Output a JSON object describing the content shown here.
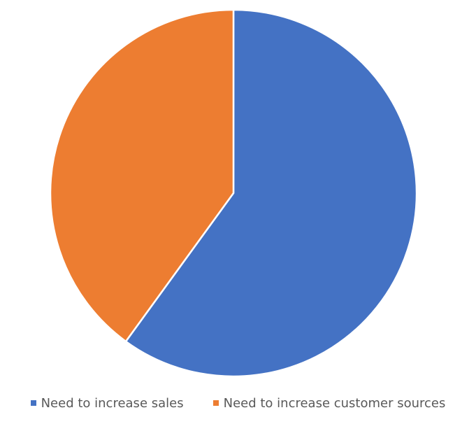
{
  "chart_data": {
    "type": "pie",
    "categories": [
      "Need to increase sales",
      "Need to increase customer sources"
    ],
    "values": [
      60,
      40
    ],
    "colors": [
      "#4472C4",
      "#ED7D31"
    ],
    "start_angle_deg": 0,
    "direction": "clockwise",
    "legend_position": "bottom",
    "title": ""
  }
}
